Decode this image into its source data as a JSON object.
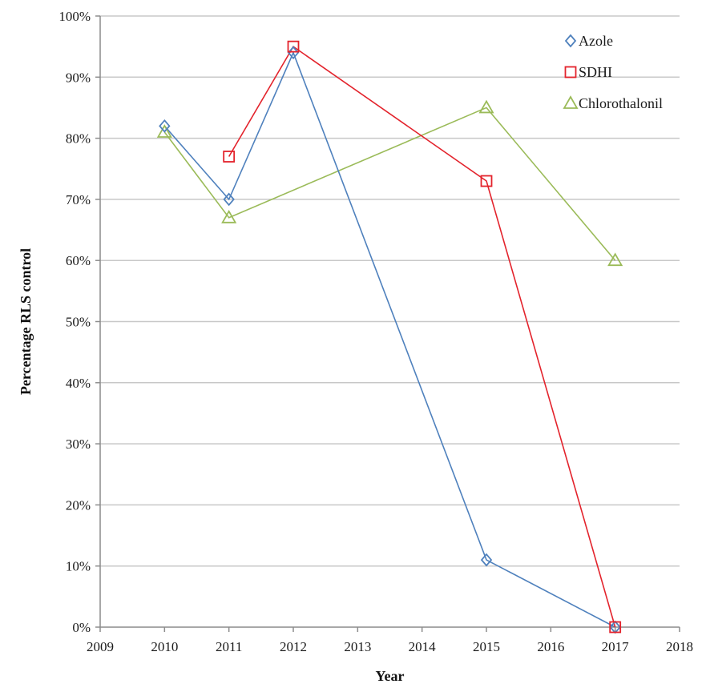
{
  "chart_data": {
    "type": "line",
    "title": "",
    "xlabel": "Year",
    "ylabel": "Percentage RLS control",
    "xlim": [
      2009,
      2018
    ],
    "ylim": [
      0,
      100
    ],
    "x_ticks": [
      "2009",
      "2010",
      "2011",
      "2012",
      "2013",
      "2014",
      "2015",
      "2016",
      "2017",
      "2018"
    ],
    "y_ticks": [
      "0%",
      "10%",
      "20%",
      "30%",
      "40%",
      "50%",
      "60%",
      "70%",
      "80%",
      "90%",
      "100%"
    ],
    "grid": "horizontal",
    "legend_position": "top-right",
    "series": [
      {
        "name": "Azole",
        "marker": "diamond",
        "color": "#4f81bd",
        "points": [
          [
            2010,
            82
          ],
          [
            2011,
            70
          ],
          [
            2012,
            94
          ],
          [
            2015,
            11
          ],
          [
            2017,
            0
          ]
        ]
      },
      {
        "name": "SDHI",
        "marker": "square",
        "color": "#e3232c",
        "points": [
          [
            2011,
            77
          ],
          [
            2012,
            95
          ],
          [
            2015,
            73
          ],
          [
            2017,
            0
          ]
        ]
      },
      {
        "name": "Chlorothalonil",
        "marker": "triangle",
        "color": "#9bbb59",
        "points": [
          [
            2010,
            81
          ],
          [
            2011,
            67
          ],
          [
            2015,
            85
          ],
          [
            2017,
            60
          ]
        ]
      }
    ]
  }
}
